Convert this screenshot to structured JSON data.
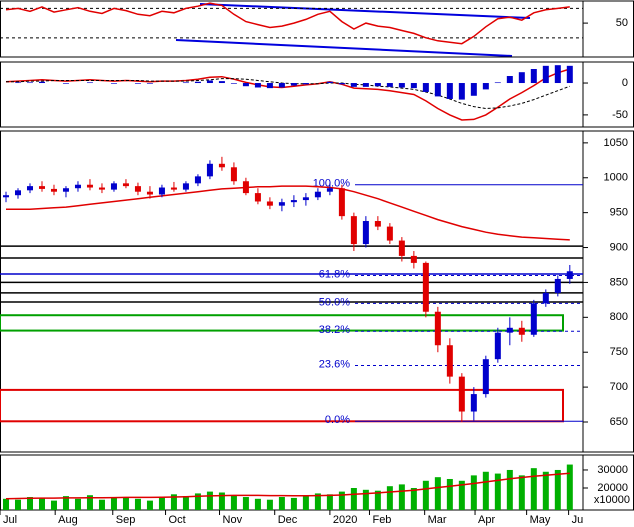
{
  "chart_data": [
    {
      "type": "rsi",
      "xlim": [
        -0.5,
        48.1
      ],
      "ylim": [
        4,
        80
      ],
      "yticks": [
        50
      ],
      "levels": [
        30,
        70
      ],
      "series": [
        {
          "color": "#e00000",
          "values": [
            68,
            70,
            66,
            72,
            65,
            68,
            71,
            66,
            63,
            70,
            67,
            62,
            60,
            66,
            64,
            70,
            73,
            77,
            74,
            62,
            52,
            48,
            44,
            46,
            50,
            55,
            62,
            66,
            52,
            42,
            50,
            46,
            44,
            40,
            36,
            30,
            26,
            24,
            22,
            32,
            45,
            56,
            58,
            54,
            64,
            68,
            70,
            72
          ]
        }
      ]
    },
    {
      "type": "macd",
      "xlim": [
        -0.5,
        48.1
      ],
      "ylim": [
        -69,
        33
      ],
      "yticks": [
        0,
        -50
      ],
      "series": [
        {
          "color": "#e00000",
          "style": "line",
          "values": [
            2,
            3,
            4,
            5,
            4,
            3,
            4,
            5,
            4,
            3,
            4,
            3,
            2,
            3,
            3,
            4,
            6,
            9,
            10,
            6,
            1,
            -3,
            -6,
            -7,
            -5,
            -3,
            -1,
            2,
            -2,
            -8,
            -9,
            -10,
            -12,
            -15,
            -18,
            -28,
            -40,
            -50,
            -58,
            -57,
            -50,
            -38,
            -25,
            -15,
            -4,
            8,
            16,
            22
          ]
        },
        {
          "color": "#000000",
          "style": "dashed",
          "values": [
            2,
            2,
            3,
            3,
            4,
            4,
            4,
            4,
            4,
            4,
            4,
            4,
            3,
            3,
            3,
            3,
            4,
            5,
            7,
            7,
            6,
            4,
            2,
            0,
            -1,
            -1,
            -1,
            0,
            0,
            -2,
            -3,
            -5,
            -6,
            -8,
            -10,
            -14,
            -19,
            -25,
            -32,
            -37,
            -40,
            -39,
            -36,
            -32,
            -26,
            -19,
            -12,
            -5
          ]
        },
        {
          "color": "#0000cc",
          "style": "histogram",
          "values": [
            0,
            1,
            1,
            2,
            0,
            -1,
            0,
            1,
            0,
            -1,
            0,
            -1,
            -1,
            0,
            0,
            1,
            2,
            4,
            3,
            -1,
            -5,
            -7,
            -8,
            -7,
            -4,
            -2,
            0,
            2,
            -2,
            -6,
            -6,
            -5,
            -6,
            -7,
            -8,
            -14,
            -21,
            -25,
            -26,
            -20,
            -10,
            1,
            11,
            17,
            22,
            27,
            28,
            27
          ]
        }
      ]
    },
    {
      "type": "candlestick",
      "xlim": [
        -0.5,
        48.1
      ],
      "ylim": [
        607,
        1067
      ],
      "yticks": [
        650,
        700,
        750,
        800,
        850,
        900,
        950,
        1000,
        1050
      ],
      "up_color": "#0000cc",
      "down_color": "#e00000",
      "open": [
        972,
        975,
        982,
        988,
        984,
        980,
        985,
        990,
        986,
        983,
        992,
        988,
        980,
        976,
        986,
        983,
        992,
        1002,
        1020,
        1015,
        995,
        978,
        966,
        960,
        965,
        968,
        972,
        980,
        985,
        945,
        905,
        938,
        930,
        910,
        888,
        878,
        808,
        760,
        715,
        665,
        690,
        740,
        778,
        785,
        775,
        820,
        835,
        855
      ],
      "high": [
        980,
        985,
        992,
        995,
        990,
        988,
        995,
        998,
        992,
        995,
        998,
        993,
        988,
        990,
        994,
        995,
        1005,
        1025,
        1030,
        1022,
        1000,
        985,
        972,
        970,
        975,
        978,
        985,
        992,
        990,
        950,
        945,
        945,
        935,
        915,
        895,
        880,
        815,
        770,
        720,
        700,
        745,
        785,
        800,
        795,
        825,
        840,
        860,
        875
      ],
      "low": [
        965,
        970,
        978,
        980,
        975,
        972,
        980,
        982,
        978,
        980,
        985,
        975,
        970,
        972,
        980,
        980,
        988,
        998,
        1010,
        990,
        975,
        962,
        955,
        952,
        958,
        960,
        968,
        975,
        940,
        895,
        900,
        925,
        905,
        880,
        870,
        800,
        750,
        705,
        650,
        652,
        685,
        735,
        760,
        765,
        772,
        815,
        830,
        848
      ],
      "close": [
        975,
        982,
        988,
        984,
        980,
        985,
        990,
        986,
        983,
        992,
        988,
        980,
        976,
        986,
        983,
        992,
        1002,
        1020,
        1015,
        995,
        978,
        966,
        960,
        965,
        968,
        972,
        980,
        985,
        945,
        905,
        938,
        930,
        910,
        888,
        878,
        808,
        760,
        715,
        665,
        690,
        740,
        778,
        785,
        775,
        820,
        835,
        855,
        866
      ],
      "ma": {
        "color": "#e00000",
        "values": [
          955,
          955,
          955,
          956,
          957,
          958,
          960,
          962,
          964,
          966,
          968,
          970,
          972,
          974,
          976,
          978,
          980,
          982,
          984,
          985,
          986,
          987,
          987,
          988,
          988,
          988,
          987,
          986,
          984,
          980,
          975,
          970,
          964,
          958,
          952,
          946,
          940,
          935,
          930,
          926,
          922,
          919,
          917,
          915,
          914,
          913,
          912,
          911
        ]
      },
      "levels": {
        "color": "#000000",
        "values": [
          902,
          885,
          850,
          835,
          822
        ]
      },
      "support": {
        "color": "#0000cc",
        "values": [
          862
        ]
      },
      "fib": {
        "color": "#0000cc",
        "levels": [
          {
            "value": 990,
            "label": "100.0%"
          },
          {
            "value": 860,
            "label": "61.8%"
          },
          {
            "value": 820,
            "label": "50.0%"
          },
          {
            "value": 780,
            "label": "38.2%"
          },
          {
            "value": 731,
            "label": "23.6%"
          },
          {
            "value": 651,
            "label": "0.0%"
          }
        ]
      },
      "zones": [
        {
          "range": [
            781,
            803
          ],
          "color": "#00a000"
        },
        {
          "range": [
            651,
            696
          ],
          "color": "#e00000"
        }
      ]
    },
    {
      "type": "volume",
      "xlim": [
        -0.5,
        48.1
      ],
      "ylim": [
        7800,
        38300
      ],
      "yticks": [
        20000,
        30000
      ],
      "y_unit": "x10000",
      "color": "#00b000",
      "values": [
        14000,
        13500,
        15000,
        14500,
        13000,
        15500,
        14000,
        16000,
        13500,
        14500,
        15000,
        14000,
        13000,
        15000,
        16500,
        15500,
        17000,
        18000,
        17500,
        16000,
        15000,
        14000,
        13500,
        15000,
        14500,
        16000,
        17000,
        16500,
        18000,
        20000,
        19000,
        18500,
        21000,
        22000,
        20000,
        24000,
        26000,
        25000,
        24000,
        27000,
        29000,
        28000,
        30000,
        27000,
        31000,
        29000,
        30000,
        33000
      ],
      "ma": {
        "color": "#e00000",
        "values": [
          14000,
          14200,
          14300,
          14400,
          14400,
          14500,
          14500,
          14600,
          14600,
          14700,
          14800,
          14800,
          14800,
          14900,
          15000,
          15200,
          15400,
          15600,
          15800,
          15900,
          15900,
          15900,
          15800,
          15800,
          15700,
          15700,
          15800,
          15900,
          16100,
          16500,
          16900,
          17300,
          17800,
          18300,
          18800,
          19500,
          20300,
          21000,
          21700,
          22500,
          23400,
          24200,
          25100,
          25800,
          26500,
          27100,
          27600,
          28200
        ]
      },
      "xticks": [
        {
          "value": -0.5,
          "label": "Jul"
        },
        {
          "value": 4.1,
          "label": "Aug"
        },
        {
          "value": 8.9,
          "label": "Sep"
        },
        {
          "value": 13.3,
          "label": "Oct"
        },
        {
          "value": 17.8,
          "label": "Nov"
        },
        {
          "value": 22.4,
          "label": "Dec"
        },
        {
          "value": 27,
          "label": "2020"
        },
        {
          "value": 30.3,
          "label": "Feb"
        },
        {
          "value": 34.9,
          "label": "Mar"
        },
        {
          "value": 39.1,
          "label": "Apr"
        },
        {
          "value": 43.4,
          "label": "May"
        },
        {
          "value": 46.9,
          "label": "Ju"
        }
      ]
    }
  ]
}
